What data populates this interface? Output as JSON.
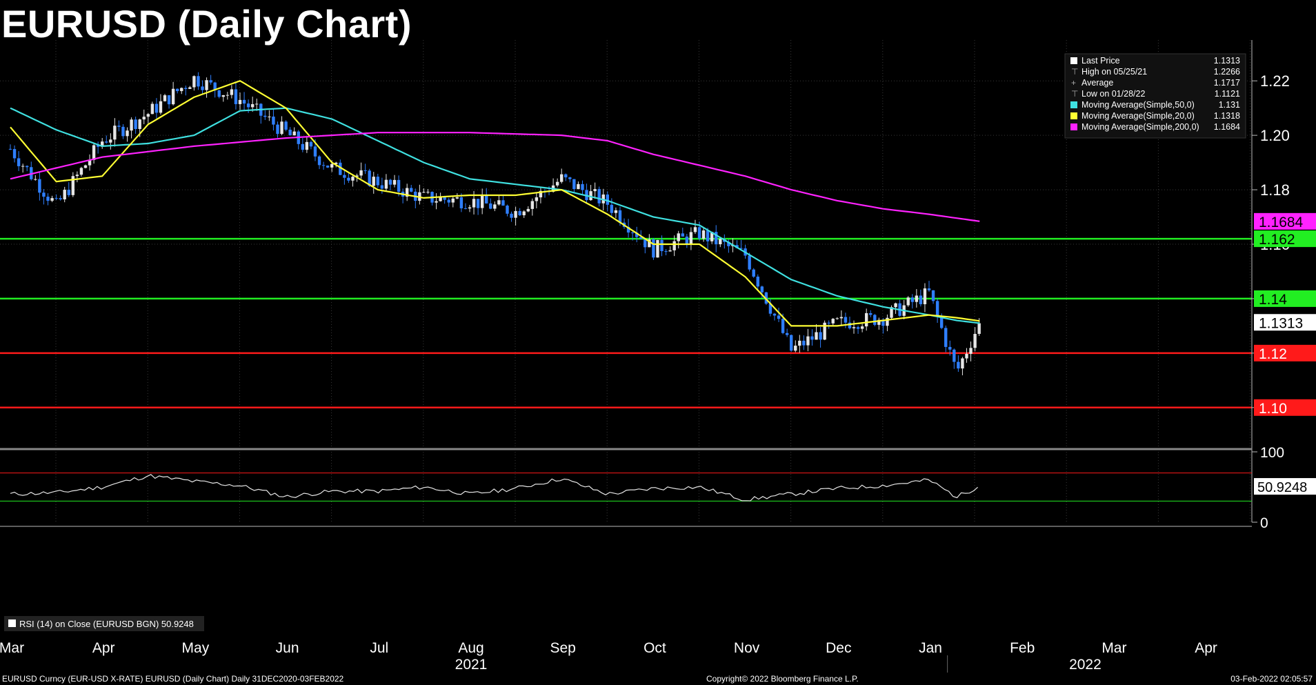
{
  "title": "EURUSD (Daily Chart)",
  "footer": {
    "left": "EURUSD Curncy (EUR-USD X-RATE) EURUSD (Daily Chart)  Daily 31DEC2020-03FEB2022",
    "center": "Copyright© 2022 Bloomberg Finance L.P.",
    "right": "03-Feb-2022 02:05:57"
  },
  "legend": {
    "items": [
      {
        "label": "Last Price",
        "value": "1.1313",
        "color": "#ffffff",
        "marker": "box"
      },
      {
        "label": "High on 05/25/21",
        "value": "1.2266",
        "color": "#aaaaaa",
        "marker": "high"
      },
      {
        "label": "Average",
        "value": "1.1717",
        "color": "#aaaaaa",
        "marker": "avg"
      },
      {
        "label": "Low on 01/28/22",
        "value": "1.1121",
        "color": "#aaaaaa",
        "marker": "low"
      },
      {
        "label": "Moving Average(Simple,50,0)",
        "value": "1.131",
        "color": "#3fe0e0",
        "marker": "box"
      },
      {
        "label": "Moving Average(Simple,20,0)",
        "value": "1.1318",
        "color": "#ffff33",
        "marker": "box"
      },
      {
        "label": "Moving Average(Simple,200,0)",
        "value": "1.1684",
        "color": "#ff22ff",
        "marker": "box"
      }
    ]
  },
  "rsi": {
    "legend": "RSI (14)  on Close (EURUSD BGN) 50.9248",
    "value_label": "50.9248",
    "y_ticks": [
      "100",
      "0"
    ]
  },
  "colors": {
    "up_candle": "#e6e6e6",
    "down_candle": "#2f7fff",
    "ma50": "#3fe0e0",
    "ma20": "#ffff33",
    "ma200": "#ff22ff",
    "support_line": "#ff1a1a",
    "resistance_line": "#22ee22",
    "grid": "#3a3a3a"
  },
  "chart_data": [
    {
      "type": "line",
      "name": "price",
      "title": "EURUSD (Daily Chart)",
      "ylim": [
        1.085,
        1.235
      ],
      "y_ticks": [
        "1.22",
        "1.20",
        "1.18",
        "1.16",
        "1.14",
        "1.12",
        "1.10"
      ],
      "x_months": [
        "Mar",
        "Apr",
        "May",
        "Jun",
        "Jul",
        "Aug",
        "Sep",
        "Oct",
        "Nov",
        "Dec",
        "Jan",
        "Feb",
        "Mar",
        "Apr"
      ],
      "x_years": [
        "2021",
        "2022"
      ],
      "months_index": [
        0,
        1,
        2,
        3,
        4,
        5,
        6,
        7,
        8,
        9,
        10,
        11,
        12,
        13
      ],
      "close_samples": {
        "x": [
          0,
          0.5,
          1.0,
          1.5,
          2.0,
          2.5,
          3.0,
          3.5,
          4.0,
          4.5,
          5.0,
          5.5,
          6.0,
          6.5,
          7.0,
          7.5,
          8.0,
          8.5,
          9.0,
          9.5,
          10.0,
          10.3,
          10.55
        ],
        "y": [
          1.195,
          1.174,
          1.198,
          1.208,
          1.221,
          1.213,
          1.201,
          1.188,
          1.183,
          1.177,
          1.176,
          1.172,
          1.184,
          1.175,
          1.158,
          1.164,
          1.156,
          1.121,
          1.131,
          1.133,
          1.142,
          1.113,
          1.1313
        ]
      },
      "series": [
        {
          "name": "Moving Average(Simple,50,0)",
          "x": [
            0,
            0.5,
            1.0,
            1.5,
            2.0,
            2.5,
            3.0,
            3.5,
            4.0,
            4.5,
            5.0,
            5.5,
            6.0,
            6.5,
            7.0,
            7.5,
            8.0,
            8.5,
            9.0,
            9.5,
            10.0,
            10.3,
            10.55
          ],
          "y": [
            1.21,
            1.202,
            1.196,
            1.197,
            1.2,
            1.209,
            1.21,
            1.206,
            1.198,
            1.19,
            1.184,
            1.182,
            1.18,
            1.176,
            1.17,
            1.167,
            1.157,
            1.147,
            1.141,
            1.137,
            1.134,
            1.132,
            1.131
          ]
        },
        {
          "name": "Moving Average(Simple,20,0)",
          "x": [
            0,
            0.5,
            1.0,
            1.5,
            2.0,
            2.5,
            3.0,
            3.5,
            4.0,
            4.5,
            5.0,
            5.5,
            6.0,
            6.5,
            7.0,
            7.5,
            8.0,
            8.5,
            9.0,
            9.5,
            10.0,
            10.3,
            10.55
          ],
          "y": [
            1.203,
            1.183,
            1.185,
            1.204,
            1.214,
            1.22,
            1.21,
            1.19,
            1.18,
            1.177,
            1.178,
            1.178,
            1.18,
            1.171,
            1.16,
            1.16,
            1.148,
            1.13,
            1.13,
            1.132,
            1.134,
            1.133,
            1.1318
          ]
        },
        {
          "name": "Moving Average(Simple,200,0)",
          "x": [
            0,
            1.0,
            2.0,
            3.0,
            4.0,
            5.0,
            6.0,
            6.5,
            7.0,
            7.5,
            8.0,
            8.5,
            9.0,
            9.5,
            10.0,
            10.55
          ],
          "y": [
            1.184,
            1.192,
            1.196,
            1.199,
            1.201,
            1.201,
            1.2,
            1.198,
            1.193,
            1.189,
            1.185,
            1.18,
            1.176,
            1.173,
            1.171,
            1.1684
          ]
        }
      ],
      "hlines": [
        {
          "value": 1.162,
          "label": "1.162",
          "color": "#22ee22"
        },
        {
          "value": 1.14,
          "label": "1.14",
          "color": "#22ee22"
        },
        {
          "value": 1.12,
          "label": "1.12",
          "color": "#ff1a1a"
        },
        {
          "value": 1.1,
          "label": "1.10",
          "color": "#ff1a1a"
        }
      ],
      "value_labels": [
        {
          "value": 1.1684,
          "label": "1.1684",
          "color": "#ff22ff",
          "text_color": "#000000"
        },
        {
          "value": 1.1313,
          "label": "1.1313",
          "color": "#ffffff",
          "text_color": "#000000"
        }
      ]
    },
    {
      "type": "line",
      "name": "RSI (14)",
      "ylim": [
        0,
        100
      ],
      "levels": [
        70,
        30
      ],
      "x": [
        0,
        0.5,
        1.0,
        1.5,
        2.0,
        2.5,
        3.0,
        3.5,
        4.0,
        4.5,
        5.0,
        5.5,
        6.0,
        6.5,
        7.0,
        7.5,
        8.0,
        8.5,
        9.0,
        9.5,
        10.0,
        10.3,
        10.55
      ],
      "y": [
        40,
        42,
        50,
        66,
        58,
        52,
        36,
        44,
        44,
        50,
        40,
        48,
        62,
        40,
        48,
        50,
        32,
        40,
        48,
        52,
        60,
        36,
        50.9248
      ]
    }
  ]
}
